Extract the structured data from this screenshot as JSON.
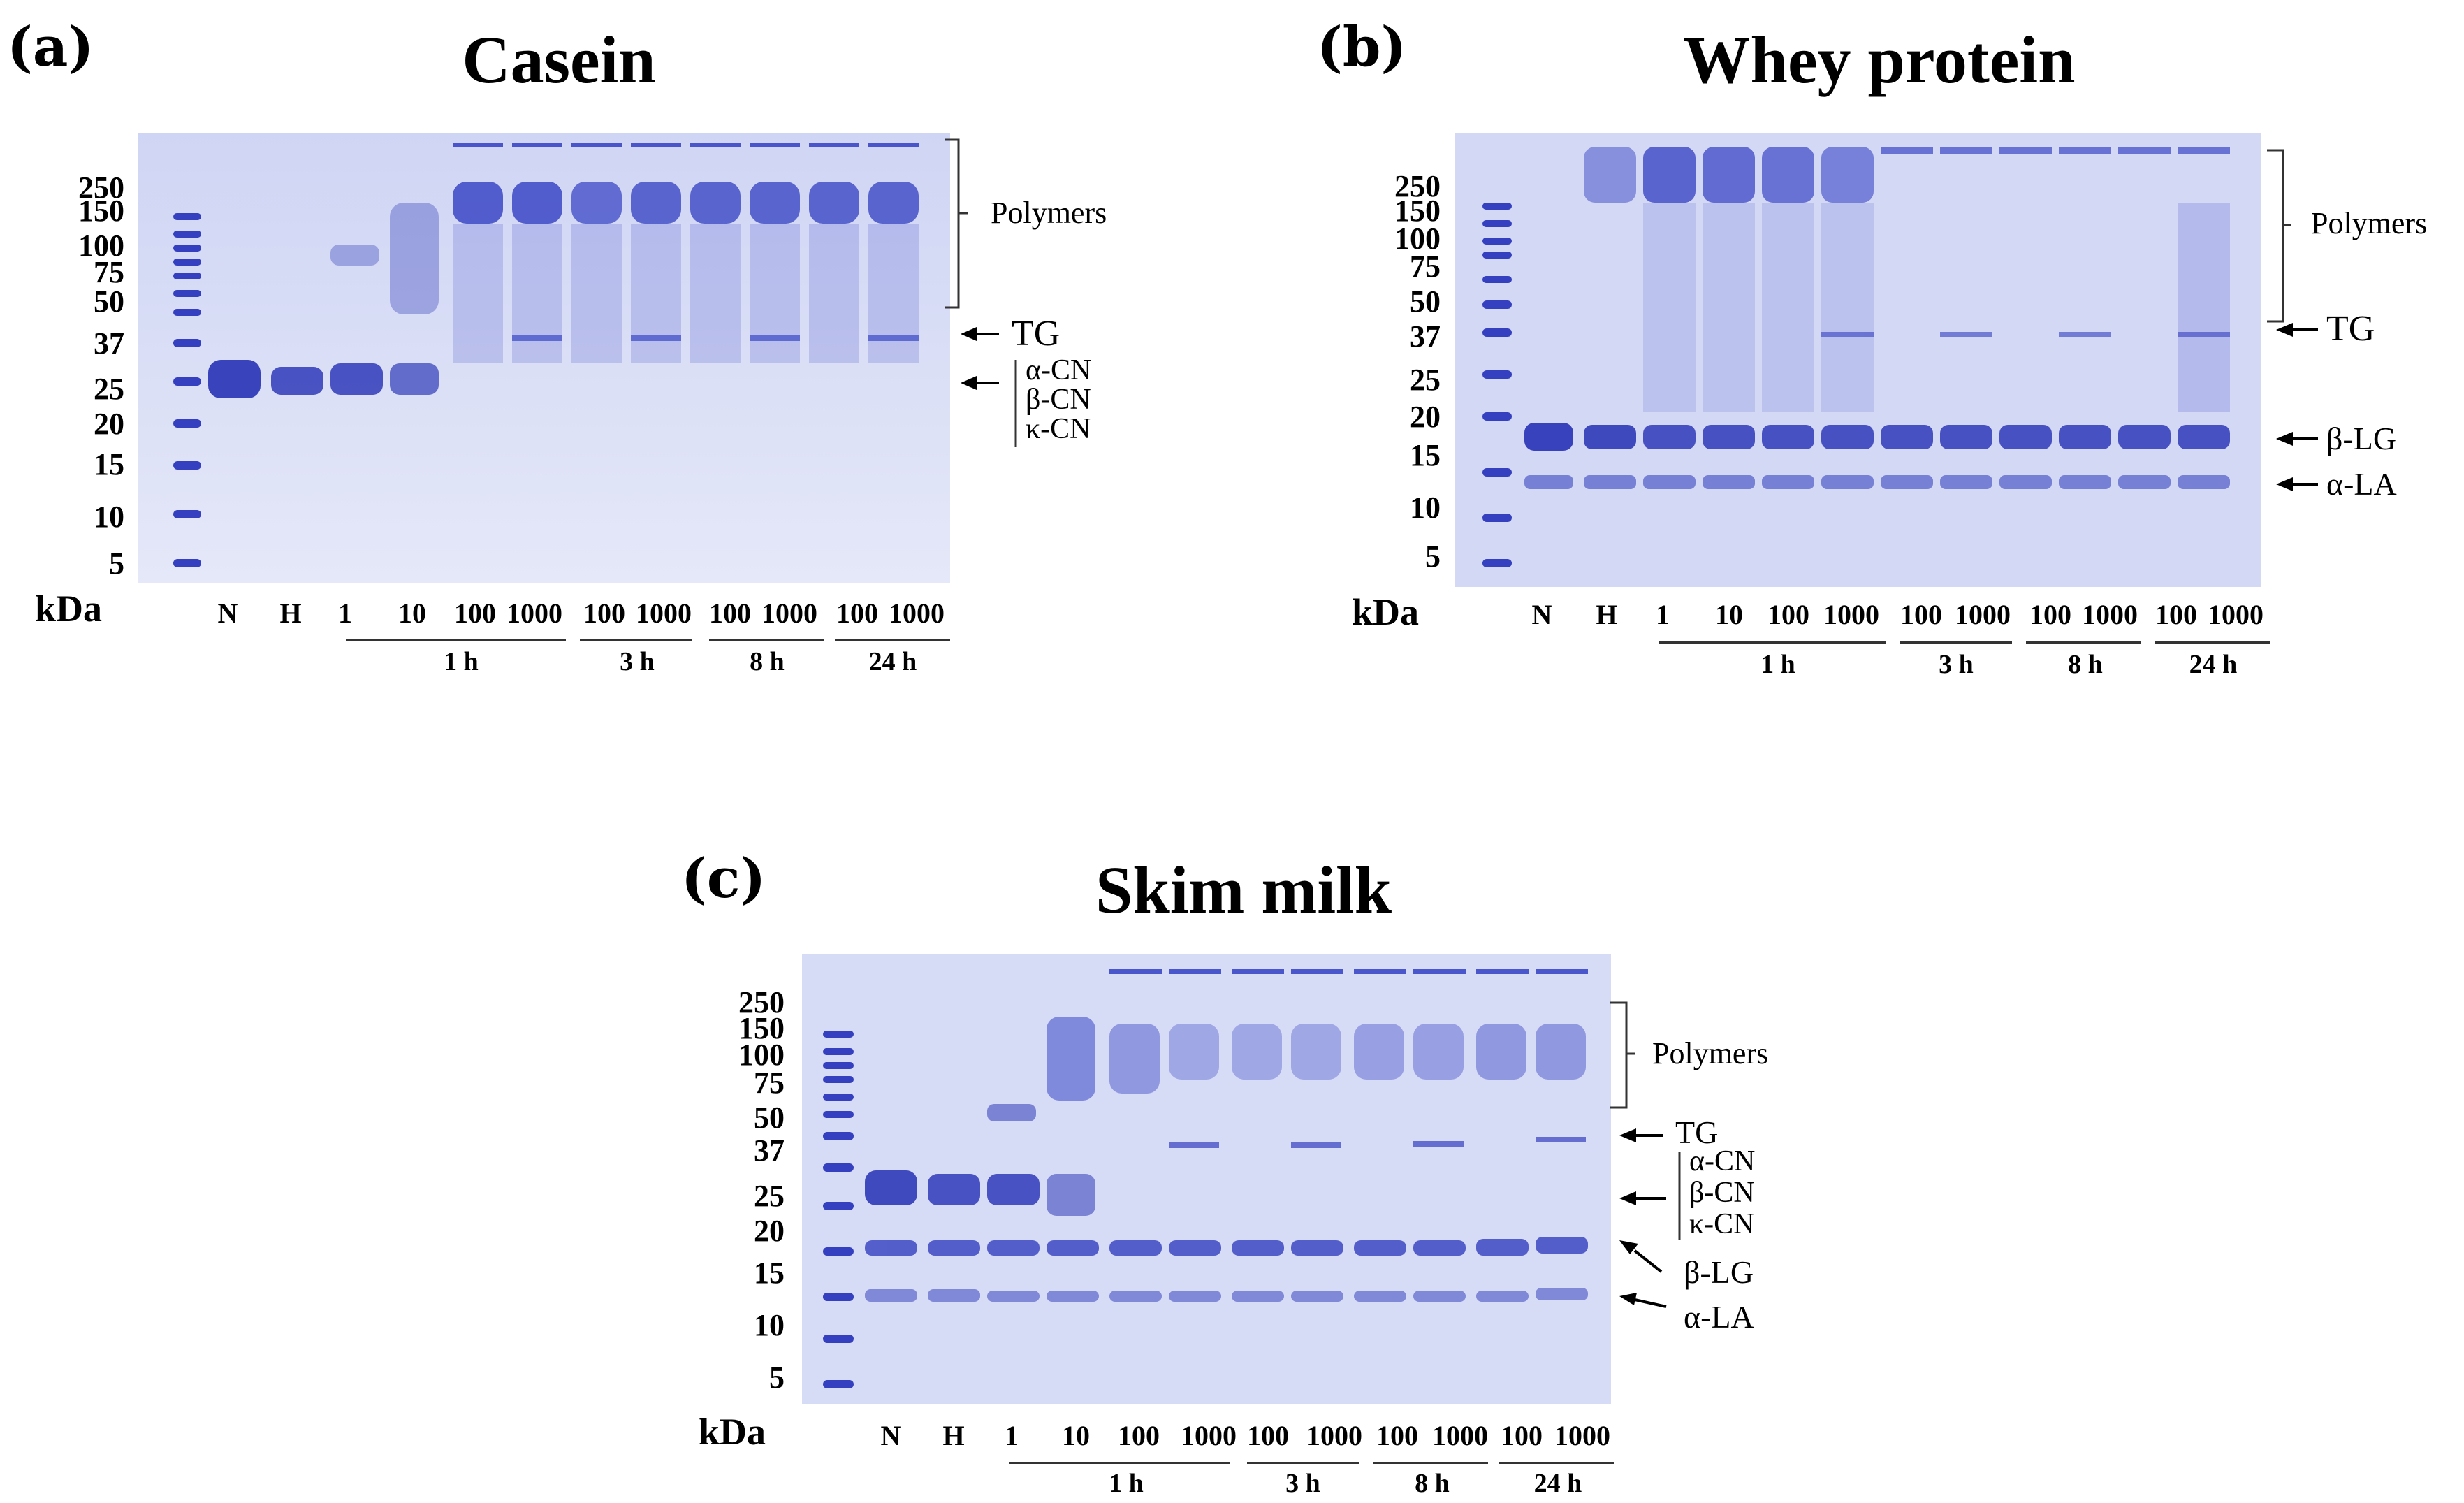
{
  "colors": {
    "gel_bg": "#dfe3f7",
    "band": "#3c48c8",
    "ladder": "#3440c0"
  },
  "unit_label": "kDa",
  "lane_labels": [
    "N",
    "H",
    "1",
    "10",
    "100",
    "1000",
    "100",
    "1000",
    "100",
    "1000",
    "100",
    "1000"
  ],
  "time_groups": [
    "1 h",
    "3 h",
    "8 h",
    "24 h"
  ],
  "panels": {
    "a": {
      "label": "(a)",
      "title": "Casein",
      "markers": [
        "250",
        "150",
        "100",
        "75",
        "50",
        "37",
        "25",
        "20",
        "15",
        "10",
        "5"
      ],
      "annotations": {
        "polymers": "Polymers",
        "tg": "TG",
        "cn": [
          "α-CN",
          "β-CN",
          "κ-CN"
        ]
      }
    },
    "b": {
      "label": "(b)",
      "title": "Whey protein",
      "markers": [
        "250",
        "150",
        "100",
        "75",
        "50",
        "37",
        "25",
        "20",
        "15",
        "10",
        "5"
      ],
      "annotations": {
        "polymers": "Polymers",
        "tg": "TG",
        "blg": "β-LG",
        "ala": "α-LA"
      }
    },
    "c": {
      "label": "(c)",
      "title": "Skim milk",
      "markers": [
        "250",
        "150",
        "100",
        "75",
        "50",
        "37",
        "25",
        "20",
        "15",
        "10",
        "5"
      ],
      "annotations": {
        "polymers": "Polymers",
        "tg": "TG",
        "cn": [
          "α-CN",
          "β-CN",
          "κ-CN"
        ],
        "blg": "β-LG",
        "ala": "α-LA"
      }
    }
  }
}
